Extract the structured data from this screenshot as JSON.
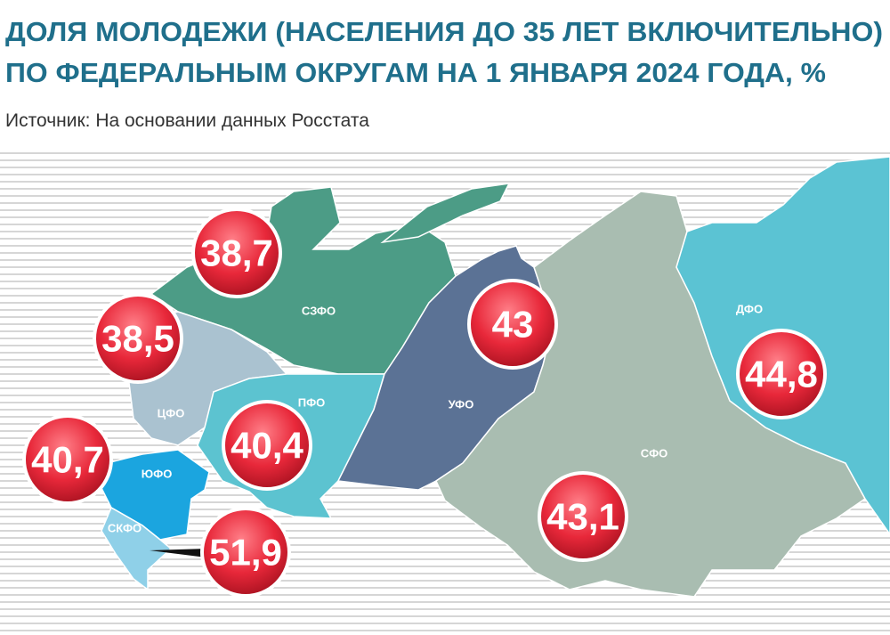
{
  "header": {
    "title_lines": [
      "ДОЛЯ МОЛОДЕЖИ (НАСЕЛЕНИЯ ДО 35 ЛЕТ ВКЛЮЧИТЕЛЬНО)",
      "ПО ФЕДЕРАЛЬНЫМ ОКРУГАМ НА 1 ЯНВАРЯ 2024 ГОДА, %"
    ],
    "source": "Источник: На основании данных Росстата"
  },
  "regions": [
    {
      "name": "СЗФО",
      "value": "38,7"
    },
    {
      "name": "ЦФО",
      "value": "38,5"
    },
    {
      "name": "ПФО",
      "value": "40,4"
    },
    {
      "name": "ЮФО",
      "value": "40,7"
    },
    {
      "name": "СКФО",
      "value": "51,9"
    },
    {
      "name": "УФО",
      "value": "43"
    },
    {
      "name": "СФО",
      "value": "43,1"
    },
    {
      "name": "ДФО",
      "value": "44,8"
    }
  ]
}
